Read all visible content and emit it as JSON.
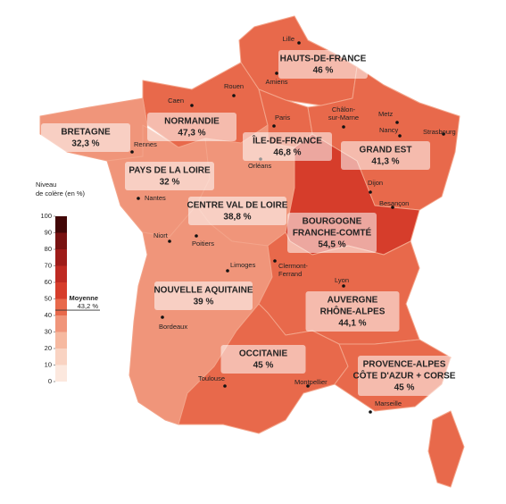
{
  "legend": {
    "title": [
      "Niveau",
      "de colère (en %)"
    ],
    "ticks": [
      0,
      10,
      20,
      30,
      40,
      50,
      60,
      70,
      80,
      90,
      100
    ],
    "colors": [
      "#fce8de",
      "#f9d3c2",
      "#f6b9a0",
      "#f0957a",
      "#e8694b",
      "#d63d2b",
      "#be2a22",
      "#9e1c19",
      "#781211",
      "#420707"
    ],
    "mean_label": "Moyenne",
    "mean": {
      "value": 43.2,
      "label": "43,2 %"
    }
  },
  "regions": [
    {
      "name": [
        "HAUTS-DE-FRANCE"
      ],
      "value": {
        "value": 46,
        "label": "46 %"
      }
    },
    {
      "name": [
        "NORMANDIE"
      ],
      "value": {
        "value": 47.3,
        "label": "47,3 %"
      }
    },
    {
      "name": [
        "ÎLE-DE-FRANCE"
      ],
      "value": {
        "value": 46.8,
        "label": "46,8 %"
      }
    },
    {
      "name": [
        "GRAND EST"
      ],
      "value": {
        "value": 41.3,
        "label": "41,3 %"
      }
    },
    {
      "name": [
        "BRETAGNE"
      ],
      "value": {
        "value": 32.3,
        "label": "32,3 %"
      }
    },
    {
      "name": [
        "PAYS DE LA LOIRE"
      ],
      "value": {
        "value": 32,
        "label": "32 %"
      }
    },
    {
      "name": [
        "CENTRE VAL DE LOIRE"
      ],
      "value": {
        "value": 38.8,
        "label": "38,8 %"
      }
    },
    {
      "name": [
        "BOURGOGNE",
        "FRANCHE-COMTÉ"
      ],
      "value": {
        "value": 54.5,
        "label": "54,5 %"
      }
    },
    {
      "name": [
        "NOUVELLE AQUITAINE"
      ],
      "value": {
        "value": 39,
        "label": "39 %"
      }
    },
    {
      "name": [
        "AUVERGNE",
        "RHÔNE-ALPES"
      ],
      "value": {
        "value": 44.1,
        "label": "44,1 %"
      }
    },
    {
      "name": [
        "OCCITANIE"
      ],
      "value": {
        "value": 45,
        "label": "45 %"
      }
    },
    {
      "name": [
        "PROVENCE-ALPES",
        "CÔTE D'AZUR + CORSE"
      ],
      "value": {
        "value": 45,
        "label": "45 %"
      }
    }
  ],
  "cities": [
    [
      "Lille"
    ],
    [
      "Amiens"
    ],
    [
      "Rouen"
    ],
    [
      "Caen"
    ],
    [
      "Paris"
    ],
    [
      "Châlon-",
      "sur-Marne"
    ],
    [
      "Metz"
    ],
    [
      "Nancy"
    ],
    [
      "Strasbourg"
    ],
    [
      "Rennes"
    ],
    [
      "Orléans"
    ],
    [
      "Nantes"
    ],
    [
      "Dijon"
    ],
    [
      "Besançon"
    ],
    [
      "Niort"
    ],
    [
      "Poitiers"
    ],
    [
      "Limoges"
    ],
    [
      "Clermont-",
      "Ferrand"
    ],
    [
      "Lyon"
    ],
    [
      "Bordeaux"
    ],
    [
      "Toulouse"
    ],
    [
      "Montpellier"
    ],
    [
      "Marseille"
    ]
  ]
}
